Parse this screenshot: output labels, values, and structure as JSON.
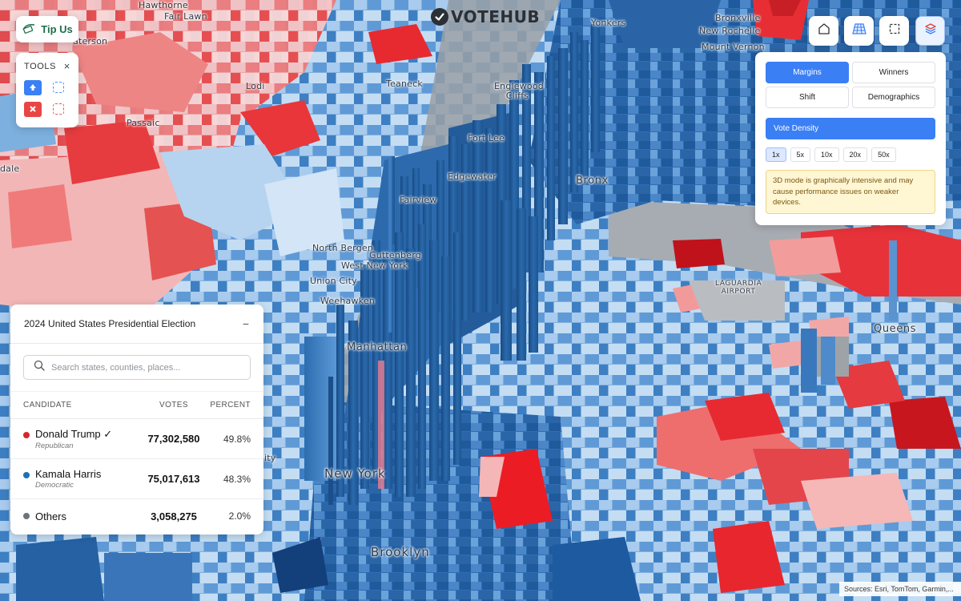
{
  "app": {
    "logo_text": "VOTEHUB",
    "tip_us_label": "Tip Us"
  },
  "tools": {
    "title": "TOOLS",
    "close_glyph": "×"
  },
  "top_buttons": [
    {
      "icon": "home-icon",
      "active": false
    },
    {
      "icon": "3d-grid-icon",
      "active": false
    },
    {
      "icon": "select-area-icon",
      "active": false
    },
    {
      "icon": "layers-icon",
      "active": true
    }
  ],
  "layer_panel": {
    "modes": [
      "Margins",
      "Winners",
      "Shift",
      "Demographics"
    ],
    "active_mode": "Margins",
    "vote_density_label": "Vote Density",
    "multipliers": [
      "1x",
      "5x",
      "10x",
      "20x",
      "50x"
    ],
    "active_multiplier": "1x",
    "warning": "3D mode is graphically intensive and may cause performance issues on weaker devices."
  },
  "results": {
    "title": "2024 United States Presidential Election",
    "collapse_glyph": "−",
    "search_placeholder": "Search states, counties, places...",
    "columns": {
      "candidate": "CANDIDATE",
      "votes": "VOTES",
      "percent": "PERCENT"
    },
    "rows": [
      {
        "name": "Donald Trump ✓",
        "party": "Republican",
        "votes": "77,302,580",
        "percent": "49.8%",
        "color": "#d7262e"
      },
      {
        "name": "Kamala Harris",
        "party": "Democratic",
        "votes": "75,017,613",
        "percent": "48.3%",
        "color": "#1f6fb6"
      },
      {
        "name": "Others",
        "party": "",
        "votes": "3,058,275",
        "percent": "2.0%",
        "color": "#6d737a"
      }
    ]
  },
  "map_labels": {
    "hawthorne": "Hawthorne",
    "fair_lawn": "Fair Lawn",
    "paterson": "aterson",
    "lodi": "Lodi",
    "passaic": "Passaic",
    "dale": "dale",
    "teaneck": "Teaneck",
    "englewood_cliffs": "Englewood Cliffs",
    "fort_lee": "Fort Lee",
    "edgewater": "Edgewater",
    "fairview": "Fairview",
    "north_bergen": "North Bergen",
    "guttenberg": "Guttenberg",
    "west_new_york": "West New York",
    "union_city": "Union City",
    "weehawken": "Weehawken",
    "manhattan": "Manhattan",
    "bronx": "Bronx",
    "yonkers": "Yonkers",
    "bronxville": "Bronxville",
    "mount_vernon": "Mount Vernon",
    "new_rochelle": "New Rochelle",
    "laguardia": "LAGUARDIA AIRPORT",
    "queens": "Queens",
    "new_york": "New York",
    "brooklyn": "Brooklyn",
    "ity": "ity"
  },
  "map_colors": {
    "strong_dem": "#1f5fa8",
    "dem": "#4d8fd0",
    "lean_dem": "#a9cdef",
    "tilt_dem": "#d6e8f8",
    "strong_rep": "#e8232b",
    "rep": "#ef6b6b",
    "lean_rep": "#f6b0b0",
    "water": "#9aa0a6"
  },
  "attribution": "Sources: Esri, TomTom, Garmin,..."
}
